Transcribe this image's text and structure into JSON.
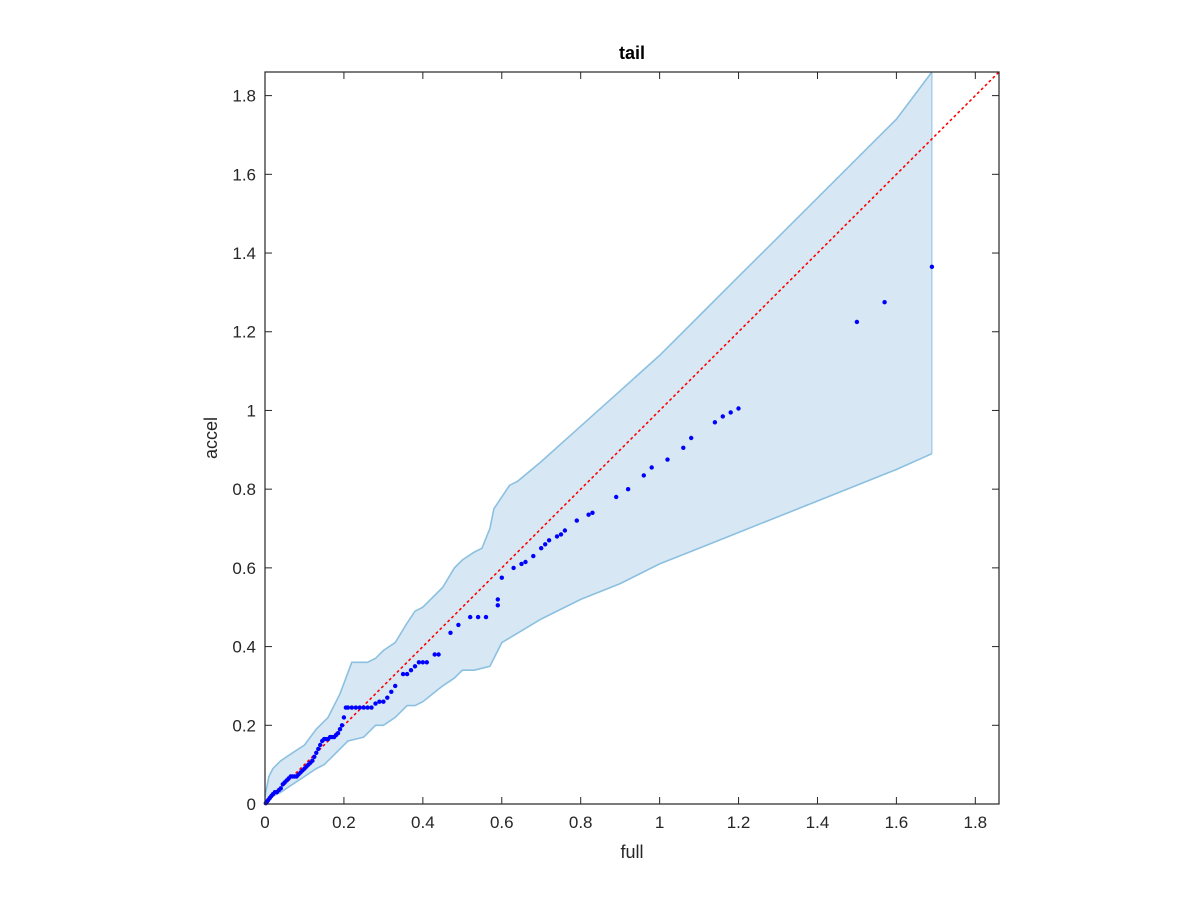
{
  "chart_data": {
    "type": "scatter",
    "title": "tail",
    "xlabel": "full",
    "ylabel": "accel",
    "xlim": [
      0,
      1.86
    ],
    "ylim": [
      0,
      1.86
    ],
    "grid": false,
    "legend": "none",
    "xticks": [
      0,
      0.2,
      0.4,
      0.6,
      0.8,
      1,
      1.2,
      1.4,
      1.6,
      1.8
    ],
    "yticks": [
      0,
      0.2,
      0.4,
      0.6,
      0.8,
      1,
      1.2,
      1.4,
      1.6,
      1.8
    ],
    "xtick_labels": [
      "0",
      "0.2",
      "0.4",
      "0.6",
      "0.8",
      "1",
      "1.2",
      "1.4",
      "1.6",
      "1.8"
    ],
    "ytick_labels": [
      "0",
      "0.2",
      "0.4",
      "0.6",
      "0.8",
      "1",
      "1.2",
      "1.4",
      "1.6",
      "1.8"
    ],
    "reference_line": {
      "x": [
        0,
        1.86
      ],
      "y": [
        0,
        1.86
      ],
      "color": "#ff0000",
      "style": "dotted"
    },
    "band": {
      "fill_color": "#d7e8f4",
      "edge_color": "#8cc0e0",
      "x_upper": [
        0,
        0.01,
        0.02,
        0.04,
        0.07,
        0.1,
        0.13,
        0.16,
        0.19,
        0.22,
        0.26,
        0.28,
        0.3,
        0.33,
        0.36,
        0.38,
        0.4,
        0.45,
        0.48,
        0.5,
        0.53,
        0.55,
        0.57,
        0.58,
        0.62,
        0.64,
        0.7,
        0.8,
        0.9,
        1.0,
        1.1,
        1.2,
        1.3,
        1.4,
        1.5,
        1.6,
        1.69
      ],
      "y_upper": [
        0.02,
        0.07,
        0.09,
        0.11,
        0.13,
        0.15,
        0.19,
        0.22,
        0.28,
        0.36,
        0.36,
        0.37,
        0.39,
        0.41,
        0.46,
        0.49,
        0.5,
        0.55,
        0.6,
        0.62,
        0.64,
        0.65,
        0.7,
        0.75,
        0.81,
        0.82,
        0.87,
        0.96,
        1.05,
        1.14,
        1.24,
        1.34,
        1.44,
        1.54,
        1.64,
        1.74,
        1.86
      ],
      "x_lower": [
        0,
        0.01,
        0.02,
        0.04,
        0.07,
        0.1,
        0.13,
        0.15,
        0.17,
        0.21,
        0.25,
        0.28,
        0.3,
        0.33,
        0.36,
        0.38,
        0.4,
        0.45,
        0.48,
        0.5,
        0.53,
        0.57,
        0.6,
        0.65,
        0.7,
        0.8,
        0.9,
        1.0,
        1.1,
        1.2,
        1.3,
        1.4,
        1.5,
        1.6,
        1.69
      ],
      "y_lower": [
        0,
        0.01,
        0.02,
        0.03,
        0.05,
        0.07,
        0.09,
        0.1,
        0.12,
        0.16,
        0.17,
        0.2,
        0.2,
        0.22,
        0.25,
        0.25,
        0.26,
        0.3,
        0.32,
        0.34,
        0.34,
        0.35,
        0.41,
        0.44,
        0.47,
        0.52,
        0.56,
        0.61,
        0.65,
        0.69,
        0.73,
        0.77,
        0.81,
        0.85,
        0.89
      ]
    },
    "series": [
      {
        "color": "#0000ff",
        "x": [
          0.002,
          0.005,
          0.008,
          0.012,
          0.016,
          0.02,
          0.025,
          0.03,
          0.035,
          0.04,
          0.045,
          0.05,
          0.055,
          0.06,
          0.065,
          0.07,
          0.075,
          0.08,
          0.085,
          0.09,
          0.095,
          0.1,
          0.105,
          0.11,
          0.115,
          0.12,
          0.125,
          0.13,
          0.135,
          0.14,
          0.145,
          0.15,
          0.155,
          0.16,
          0.165,
          0.17,
          0.175,
          0.18,
          0.185,
          0.19,
          0.195,
          0.2,
          0.205,
          0.21,
          0.22,
          0.23,
          0.24,
          0.25,
          0.26,
          0.27,
          0.28,
          0.29,
          0.3,
          0.31,
          0.32,
          0.33,
          0.35,
          0.36,
          0.37,
          0.38,
          0.39,
          0.4,
          0.41,
          0.43,
          0.44,
          0.47,
          0.49,
          0.52,
          0.54,
          0.56,
          0.59,
          0.59,
          0.6,
          0.63,
          0.65,
          0.66,
          0.68,
          0.7,
          0.71,
          0.72,
          0.74,
          0.75,
          0.76,
          0.79,
          0.82,
          0.83,
          0.89,
          0.92,
          0.96,
          0.98,
          1.02,
          1.06,
          1.08,
          1.14,
          1.16,
          1.18,
          1.2,
          1.5,
          1.57,
          1.69
        ],
        "y": [
          0.002,
          0.006,
          0.01,
          0.015,
          0.02,
          0.025,
          0.03,
          0.03,
          0.035,
          0.04,
          0.05,
          0.055,
          0.06,
          0.065,
          0.07,
          0.07,
          0.07,
          0.07,
          0.075,
          0.08,
          0.085,
          0.09,
          0.095,
          0.1,
          0.105,
          0.11,
          0.12,
          0.13,
          0.14,
          0.15,
          0.16,
          0.165,
          0.165,
          0.165,
          0.17,
          0.17,
          0.17,
          0.175,
          0.18,
          0.19,
          0.2,
          0.22,
          0.245,
          0.245,
          0.245,
          0.245,
          0.245,
          0.245,
          0.245,
          0.245,
          0.255,
          0.26,
          0.26,
          0.27,
          0.285,
          0.3,
          0.33,
          0.33,
          0.34,
          0.35,
          0.36,
          0.36,
          0.36,
          0.38,
          0.38,
          0.435,
          0.455,
          0.475,
          0.475,
          0.475,
          0.505,
          0.52,
          0.575,
          0.6,
          0.61,
          0.615,
          0.63,
          0.65,
          0.66,
          0.67,
          0.68,
          0.685,
          0.695,
          0.72,
          0.735,
          0.74,
          0.78,
          0.8,
          0.835,
          0.855,
          0.875,
          0.905,
          0.93,
          0.97,
          0.985,
          0.995,
          1.005,
          1.225,
          1.275,
          1.365
        ]
      }
    ]
  }
}
